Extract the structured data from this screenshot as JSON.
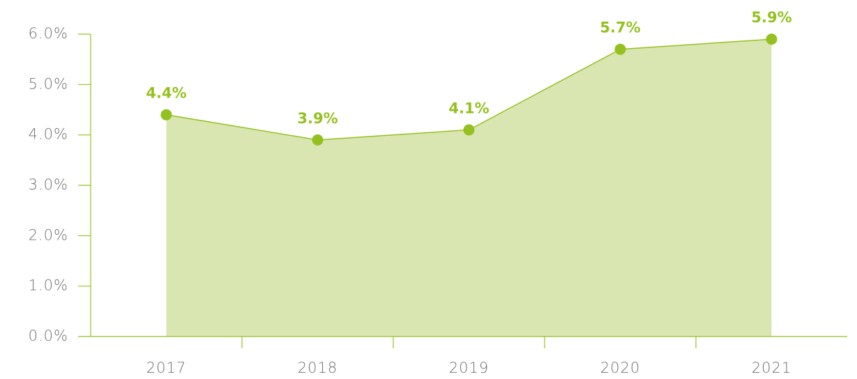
{
  "chart_data": {
    "type": "area",
    "categories": [
      "2017",
      "2018",
      "2019",
      "2020",
      "2021"
    ],
    "values": [
      4.4,
      3.9,
      4.1,
      5.7,
      5.9
    ],
    "value_labels": [
      "4.4%",
      "3.9%",
      "4.1%",
      "5.7%",
      "5.9%"
    ],
    "color": "#94c11f",
    "fill": "#d9e6b1",
    "ylim": [
      0,
      6
    ],
    "yticks": [
      {
        "value": 0,
        "label": "0.0%"
      },
      {
        "value": 1,
        "label": "1.0%"
      },
      {
        "value": 2,
        "label": "2.0%"
      },
      {
        "value": 3,
        "label": "3.0%"
      },
      {
        "value": 4,
        "label": "4.0%"
      },
      {
        "value": 5,
        "label": "5.0%"
      },
      {
        "value": 6,
        "label": "6.0%"
      }
    ],
    "grid": false
  }
}
